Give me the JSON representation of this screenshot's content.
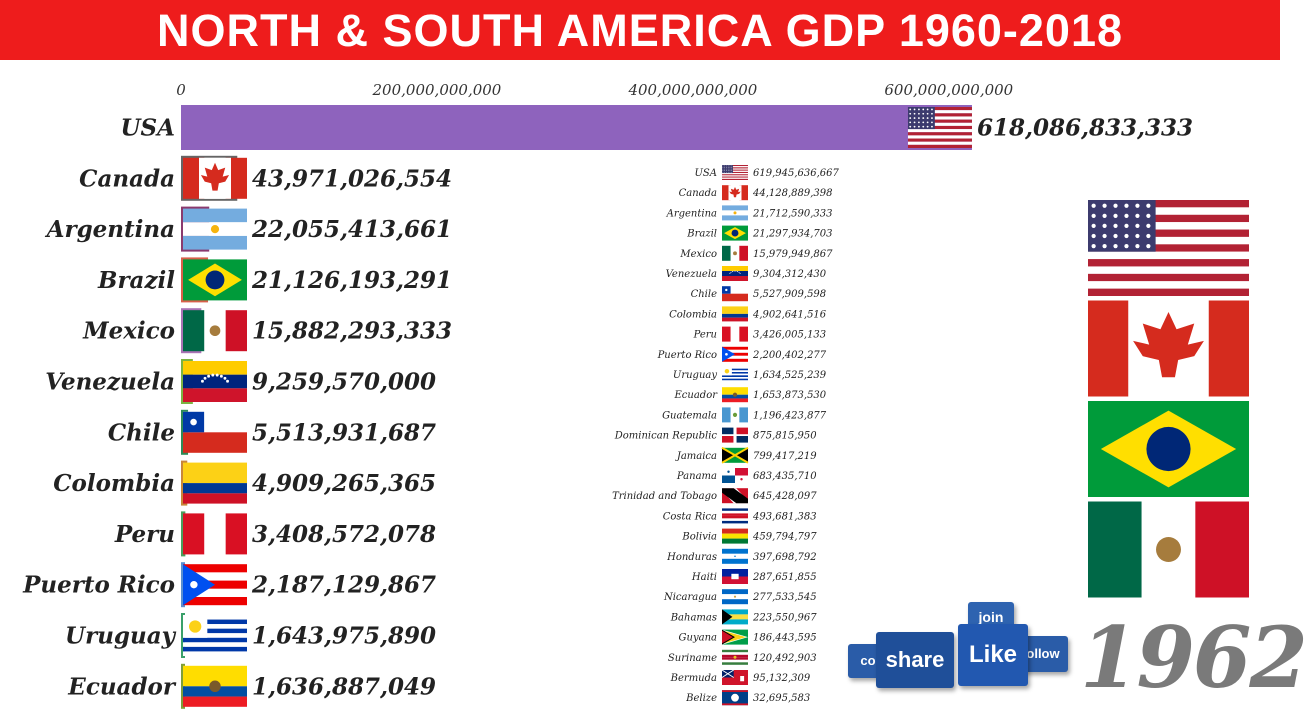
{
  "title": "NORTH & SOUTH AMERICA GDP 1960-2018",
  "year": "1962",
  "social": {
    "share": "share",
    "like": "Like",
    "join": "join",
    "follow": "ollow",
    "comment": "co"
  },
  "chart_data": [
    {
      "type": "bar",
      "orientation": "horizontal",
      "xlim": [
        0,
        640000000000
      ],
      "x_ticks": [
        0,
        200000000000,
        400000000000,
        600000000000
      ],
      "x_tick_labels": [
        "0",
        "200,000,000,000",
        "400,000,000,000",
        "600,000,000,000"
      ],
      "bars": [
        {
          "name": "USA",
          "value": 618086833333,
          "label": "618,086,833,333",
          "color": "#8e63bd",
          "flag": "us"
        },
        {
          "name": "Canada",
          "value": 43971026554,
          "label": "43,971,026,554",
          "color": "#656565",
          "flag": "ca"
        },
        {
          "name": "Argentina",
          "value": 22055413661,
          "label": "22,055,413,661",
          "color": "#8a3a6e",
          "flag": "ar"
        },
        {
          "name": "Brazil",
          "value": 21126193291,
          "label": "21,126,193,291",
          "color": "#d8604a",
          "flag": "br"
        },
        {
          "name": "Mexico",
          "value": 15882293333,
          "label": "15,882,293,333",
          "color": "#a973b5",
          "flag": "mx"
        },
        {
          "name": "Venezuela",
          "value": 9259570000,
          "label": "9,259,570,000",
          "color": "#7cb342",
          "flag": "ve"
        },
        {
          "name": "Chile",
          "value": 5513931687,
          "label": "5,513,931,687",
          "color": "#2e8b57",
          "flag": "cl"
        },
        {
          "name": "Colombia",
          "value": 4909265365,
          "label": "4,909,265,365",
          "color": "#c8873a",
          "flag": "co"
        },
        {
          "name": "Peru",
          "value": 3408572078,
          "label": "3,408,572,078",
          "color": "#4a9e5c",
          "flag": "pe"
        },
        {
          "name": "Puerto Rico",
          "value": 2187129867,
          "label": "2,187,129,867",
          "color": "#5a8fd0",
          "flag": "pr"
        },
        {
          "name": "Uruguay",
          "value": 1643975890,
          "label": "1,643,975,890",
          "color": "#3aa06a",
          "flag": "uy"
        },
        {
          "name": "Ecuador",
          "value": 1636887049,
          "label": "1,636,887,049",
          "color": "#7e9e3a",
          "flag": "ec"
        }
      ]
    },
    {
      "type": "table",
      "rows": [
        {
          "name": "USA",
          "value": "619,945,636,667",
          "flag": "us"
        },
        {
          "name": "Canada",
          "value": "44,128,889,398",
          "flag": "ca"
        },
        {
          "name": "Argentina",
          "value": "21,712,590,333",
          "flag": "ar"
        },
        {
          "name": "Brazil",
          "value": "21,297,934,703",
          "flag": "br"
        },
        {
          "name": "Mexico",
          "value": "15,979,949,867",
          "flag": "mx"
        },
        {
          "name": "Venezuela",
          "value": "9,304,312,430",
          "flag": "ve"
        },
        {
          "name": "Chile",
          "value": "5,527,909,598",
          "flag": "cl"
        },
        {
          "name": "Colombia",
          "value": "4,902,641,516",
          "flag": "co"
        },
        {
          "name": "Peru",
          "value": "3,426,005,133",
          "flag": "pe"
        },
        {
          "name": "Puerto Rico",
          "value": "2,200,402,277",
          "flag": "pr"
        },
        {
          "name": "Uruguay",
          "value": "1,634,525,239",
          "flag": "uy"
        },
        {
          "name": "Ecuador",
          "value": "1,653,873,530",
          "flag": "ec"
        },
        {
          "name": "Guatemala",
          "value": "1,196,423,877",
          "flag": "gt"
        },
        {
          "name": "Dominican Republic",
          "value": "875,815,950",
          "flag": "do"
        },
        {
          "name": "Jamaica",
          "value": "799,417,219",
          "flag": "jm"
        },
        {
          "name": "Panama",
          "value": "683,435,710",
          "flag": "pa"
        },
        {
          "name": "Trinidad and Tobago",
          "value": "645,428,097",
          "flag": "tt"
        },
        {
          "name": "Costa Rica",
          "value": "493,681,383",
          "flag": "cr"
        },
        {
          "name": "Bolivia",
          "value": "459,794,797",
          "flag": "bo"
        },
        {
          "name": "Honduras",
          "value": "397,698,792",
          "flag": "hn"
        },
        {
          "name": "Haiti",
          "value": "287,651,855",
          "flag": "ht"
        },
        {
          "name": "Nicaragua",
          "value": "277,533,545",
          "flag": "ni"
        },
        {
          "name": "Bahamas",
          "value": "223,550,967",
          "flag": "bs"
        },
        {
          "name": "Guyana",
          "value": "186,443,595",
          "flag": "gy"
        },
        {
          "name": "Suriname",
          "value": "120,492,903",
          "flag": "sr"
        },
        {
          "name": "Bermuda",
          "value": "95,132,309",
          "flag": "bm"
        },
        {
          "name": "Belize",
          "value": "32,695,583",
          "flag": "bz"
        }
      ]
    }
  ],
  "top_flags": [
    "us",
    "ca",
    "br",
    "mx"
  ]
}
